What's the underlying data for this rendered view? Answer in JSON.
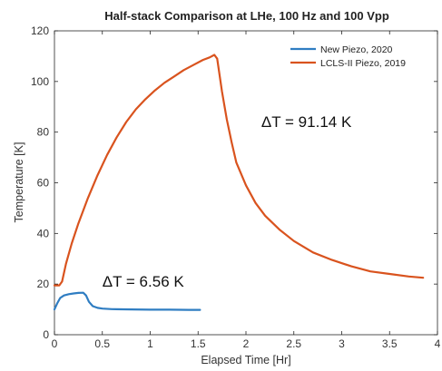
{
  "chart_data": {
    "type": "line",
    "title": "Half-stack Comparison at LHe, 100 Hz and 100 Vpp",
    "xlabel": "Elapsed Time [Hr]",
    "ylabel": "Temperature [K]",
    "xlim": [
      0,
      4
    ],
    "ylim": [
      0,
      120
    ],
    "xticks": [
      0,
      0.5,
      1,
      1.5,
      2,
      2.5,
      3,
      3.5,
      4
    ],
    "xtick_labels": [
      "0",
      "0.5",
      "1",
      "1.5",
      "2",
      "2.5",
      "3",
      "3.5",
      "4"
    ],
    "yticks": [
      0,
      20,
      40,
      60,
      80,
      100,
      120
    ],
    "ytick_labels": [
      "0",
      "20",
      "40",
      "60",
      "80",
      "100",
      "120"
    ],
    "grid": false,
    "legend_position": "top-right",
    "series": [
      {
        "name": "New Piezo, 2020",
        "color": "#2f7dc2",
        "x": [
          0,
          0.03,
          0.06,
          0.1,
          0.15,
          0.2,
          0.25,
          0.3,
          0.33,
          0.36,
          0.4,
          0.45,
          0.5,
          0.6,
          0.8,
          1.0,
          1.2,
          1.4,
          1.52
        ],
        "y": [
          10,
          12.5,
          14.5,
          15.5,
          16,
          16.3,
          16.5,
          16.6,
          15.5,
          13,
          11.3,
          10.6,
          10.3,
          10.1,
          10.0,
          9.9,
          9.9,
          9.8,
          9.8
        ]
      },
      {
        "name": "LCLS-II Piezo, 2019",
        "color": "#d9531e",
        "x": [
          0,
          0.05,
          0.08,
          0.12,
          0.18,
          0.25,
          0.35,
          0.45,
          0.55,
          0.65,
          0.75,
          0.85,
          0.95,
          1.05,
          1.15,
          1.25,
          1.35,
          1.45,
          1.55,
          1.62,
          1.67,
          1.7,
          1.75,
          1.8,
          1.85,
          1.9,
          2.0,
          2.1,
          2.2,
          2.35,
          2.5,
          2.7,
          2.9,
          3.1,
          3.3,
          3.5,
          3.7,
          3.85
        ],
        "y": [
          19.5,
          19.5,
          21,
          28,
          36,
          44,
          54,
          63,
          71,
          78,
          84,
          89,
          93,
          96.5,
          99.5,
          102,
          104.5,
          106.5,
          108.5,
          109.5,
          110.5,
          109,
          96,
          85,
          76,
          68,
          59,
          52,
          47,
          41.5,
          37,
          32.5,
          29.5,
          27,
          25,
          24,
          23,
          22.5
        ]
      }
    ],
    "annotations": [
      {
        "text": "ΔT = 91.14 K",
        "x": 2.16,
        "y": 82
      },
      {
        "text": "ΔT = 6.56 K",
        "x": 0.5,
        "y": 19
      }
    ]
  }
}
